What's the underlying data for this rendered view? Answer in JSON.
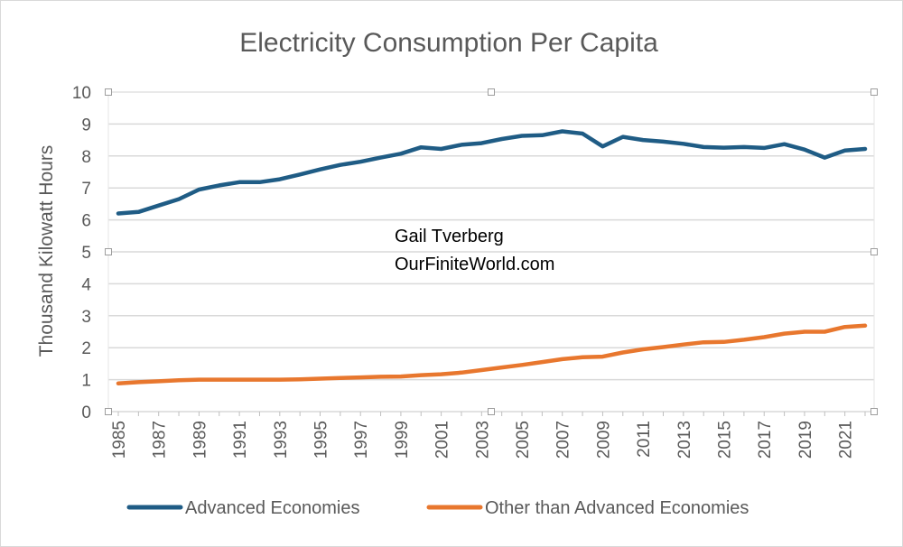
{
  "chart_data": {
    "type": "line",
    "title": "Electricity Consumption Per Capita",
    "xlabel": "",
    "ylabel": "Thousand Kilowatt Hours",
    "ylim": [
      0,
      10
    ],
    "yticks": [
      "0",
      "1",
      "2",
      "3",
      "4",
      "5",
      "6",
      "7",
      "8",
      "9",
      "10"
    ],
    "x": [
      1985,
      1986,
      1987,
      1988,
      1989,
      1990,
      1991,
      1992,
      1993,
      1994,
      1995,
      1996,
      1997,
      1998,
      1999,
      2000,
      2001,
      2002,
      2003,
      2004,
      2005,
      2006,
      2007,
      2008,
      2009,
      2010,
      2011,
      2012,
      2013,
      2014,
      2015,
      2016,
      2017,
      2018,
      2019,
      2020,
      2021,
      2022
    ],
    "xtick_labels": [
      "1985",
      "1987",
      "1989",
      "1991",
      "1993",
      "1995",
      "1997",
      "1999",
      "2001",
      "2003",
      "2005",
      "2007",
      "2009",
      "2011",
      "2013",
      "2015",
      "2017",
      "2019",
      "2021"
    ],
    "grid": true,
    "legend_position": "bottom",
    "annotations": [
      "Gail Tverberg",
      "OurFiniteWorld.com"
    ],
    "series": [
      {
        "name": "Advanced Economies",
        "color": "#1f5c85",
        "values": [
          6.2,
          6.25,
          6.45,
          6.65,
          6.95,
          7.08,
          7.18,
          7.18,
          7.27,
          7.42,
          7.58,
          7.72,
          7.82,
          7.95,
          8.07,
          8.27,
          8.22,
          8.35,
          8.4,
          8.53,
          8.63,
          8.65,
          8.77,
          8.7,
          8.3,
          8.6,
          8.5,
          8.45,
          8.38,
          8.28,
          8.26,
          8.28,
          8.25,
          8.37,
          8.2,
          7.95,
          8.17,
          8.22
        ]
      },
      {
        "name": "Other than Advanced Economies",
        "color": "#e8772e",
        "values": [
          0.88,
          0.92,
          0.95,
          0.98,
          1.0,
          1.0,
          1.0,
          1.0,
          1.0,
          1.01,
          1.03,
          1.05,
          1.07,
          1.09,
          1.1,
          1.14,
          1.17,
          1.22,
          1.3,
          1.38,
          1.46,
          1.55,
          1.64,
          1.7,
          1.72,
          1.85,
          1.95,
          2.02,
          2.1,
          2.17,
          2.18,
          2.25,
          2.33,
          2.44,
          2.5,
          2.5,
          2.65,
          2.69
        ]
      }
    ]
  }
}
